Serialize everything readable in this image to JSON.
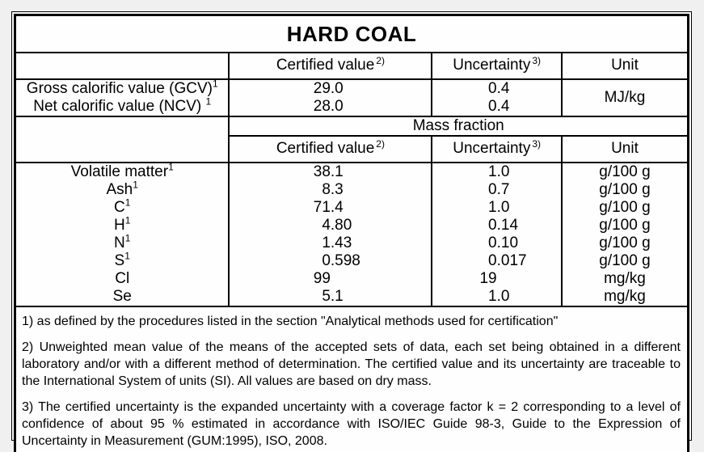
{
  "page": {
    "background": "#f0f0f0",
    "table_background": "#fefefe",
    "border_color": "#000000",
    "text_color": "#000000"
  },
  "title": "HARD COAL",
  "headers_top": {
    "certified_label": "Certified value",
    "certified_sup": "2)",
    "uncertainty_label": "Uncertainty",
    "uncertainty_sup": "3)",
    "unit_label": "Unit"
  },
  "calorific_section": {
    "rows": [
      {
        "label": "Gross calorific value (GCV)",
        "sup": "1",
        "certified": "29.0",
        "uncertainty": "0.4"
      },
      {
        "label": "Net calorific value (NCV) ",
        "sup": "1",
        "certified": "28.0",
        "uncertainty": "0.4"
      }
    ],
    "unit": "MJ/kg"
  },
  "mass_fraction": {
    "section_label": "Mass fraction",
    "headers": {
      "certified_label": "Certified value",
      "certified_sup": "2)",
      "uncertainty_label": "Uncertainty",
      "uncertainty_sup": "3)",
      "unit_label": "Unit"
    },
    "rows": [
      {
        "label": "Volatile matter",
        "sup": "1",
        "certified": "38.1",
        "uncertainty": "1.0",
        "unit": "g/100 g"
      },
      {
        "label": "Ash",
        "sup": "1",
        "certified": "8.3",
        "uncertainty": "0.7",
        "unit": "g/100 g"
      },
      {
        "label": "C",
        "sup": "1",
        "certified": "71.4",
        "uncertainty": "1.0",
        "unit": "g/100 g"
      },
      {
        "label": "H",
        "sup": "1",
        "certified": "4.80",
        "uncertainty": "0.14",
        "unit": "g/100 g"
      },
      {
        "label": "N",
        "sup": "1",
        "certified": "1.43",
        "uncertainty": "0.10",
        "unit": "g/100 g"
      },
      {
        "label": "S",
        "sup": "1",
        "certified": "0.598",
        "uncertainty": "0.017",
        "unit": "g/100 g"
      },
      {
        "label": "Cl",
        "sup": "",
        "certified": "99",
        "uncertainty": "19",
        "unit": "mg/kg"
      },
      {
        "label": "Se",
        "sup": "",
        "certified": "5.1",
        "uncertainty": "1.0",
        "unit": "mg/kg"
      }
    ]
  },
  "footnotes": [
    "1) as defined by the procedures listed in the section \"Analytical methods used for certification\"",
    "2) Unweighted mean value of the means of the accepted sets of data, each set being obtained in a different laboratory and/or with a different method of determination. The certified value and its uncertainty are traceable to the International System of units (SI). All values are based on dry mass.",
    "3) The certified uncertainty is the expanded uncertainty with a coverage factor k = 2 corresponding to a level of confidence of about 95 % estimated in accordance with ISO/IEC Guide 98-3, Guide to the Expression of Uncertainty in Measurement (GUM:1995), ISO, 2008."
  ]
}
